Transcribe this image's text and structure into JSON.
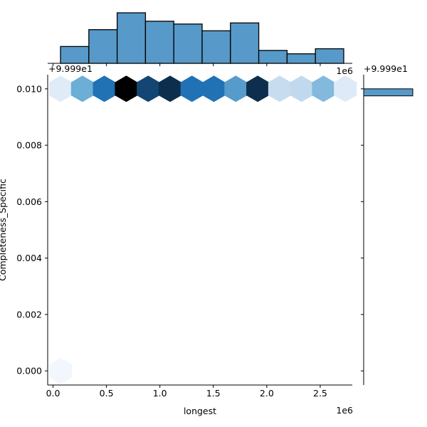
{
  "chart_data": {
    "type": "hexbin",
    "xlabel": "longest",
    "ylabel": "Completeness_Specific",
    "x_axis": {
      "range": [
        -50000,
        2800000
      ],
      "ticks": [
        0,
        500000,
        1000000,
        1500000,
        2000000,
        2500000
      ],
      "tick_labels": [
        "0.0",
        "0.5",
        "1.0",
        "1.5",
        "2.0",
        "2.5"
      ],
      "multiplier_label": "1e6"
    },
    "y_axis": {
      "range": [
        -0.0005,
        0.0105
      ],
      "ticks": [
        0.0,
        0.002,
        0.004,
        0.006,
        0.008,
        0.01
      ],
      "tick_labels": [
        "0.000",
        "0.002",
        "0.004",
        "0.006",
        "0.008",
        "0.010"
      ],
      "offset_label": "+9.999e1"
    },
    "hexbins": [
      {
        "x": 70000,
        "y": 0.01,
        "intensity": 0.12
      },
      {
        "x": 275000,
        "y": 0.01,
        "intensity": 0.45
      },
      {
        "x": 480000,
        "y": 0.01,
        "intensity": 0.62
      },
      {
        "x": 685000,
        "y": 0.01,
        "intensity": 1.0
      },
      {
        "x": 890000,
        "y": 0.01,
        "intensity": 0.82
      },
      {
        "x": 1095000,
        "y": 0.01,
        "intensity": 0.88
      },
      {
        "x": 1300000,
        "y": 0.01,
        "intensity": 0.62
      },
      {
        "x": 1505000,
        "y": 0.01,
        "intensity": 0.62
      },
      {
        "x": 1710000,
        "y": 0.01,
        "intensity": 0.5
      },
      {
        "x": 1915000,
        "y": 0.01,
        "intensity": 0.88
      },
      {
        "x": 2120000,
        "y": 0.01,
        "intensity": 0.24
      },
      {
        "x": 2325000,
        "y": 0.01,
        "intensity": 0.26
      },
      {
        "x": 2530000,
        "y": 0.01,
        "intensity": 0.4
      },
      {
        "x": 2735000,
        "y": 0.01,
        "intensity": 0.13
      },
      {
        "x": 70000,
        "y": 0.0,
        "intensity": 0.03
      }
    ],
    "x_marginal_hist": {
      "bin_edges": [
        70000,
        335000,
        600000,
        865000,
        1130000,
        1395000,
        1660000,
        1925000,
        2190000,
        2455000,
        2720000
      ],
      "counts": [
        3,
        6,
        9,
        7.5,
        7,
        5.8,
        7.2,
        2.3,
        1.7,
        2.6
      ]
    },
    "y_marginal_hist": {
      "offset_label": "+9.999e1",
      "bins": [
        {
          "y_low": 0.00975,
          "y_high": 0.01,
          "count": 1
        }
      ]
    },
    "colors": {
      "hex_low": "#f7fbff",
      "hex_high": "#000000",
      "hist_fill": "#5799c8",
      "hist_edge": "#000000"
    }
  }
}
